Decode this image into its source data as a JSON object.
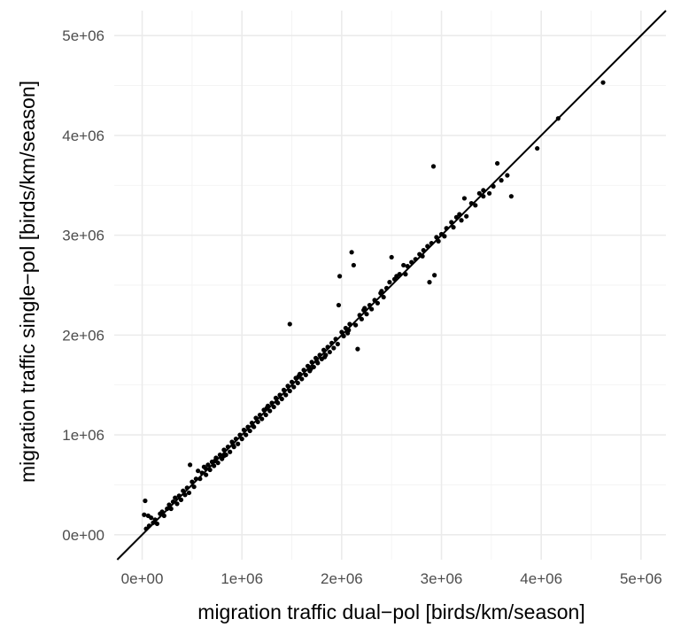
{
  "chart_data": {
    "type": "scatter",
    "xlabel": "migration traffic dual−pol [birds/km/season]",
    "ylabel": "migration traffic single−pol [birds/km/season]",
    "xlim": [
      -280000,
      5250000
    ],
    "ylim": [
      -250000,
      5250000
    ],
    "x_ticks": [
      0,
      1000000,
      2000000,
      3000000,
      4000000,
      5000000
    ],
    "x_tick_labels": [
      "0e+00",
      "1e+06",
      "2e+06",
      "3e+06",
      "4e+06",
      "5e+06"
    ],
    "y_ticks": [
      0,
      1000000,
      2000000,
      3000000,
      4000000,
      5000000
    ],
    "y_tick_labels": [
      "0e+00",
      "1e+06",
      "2e+06",
      "3e+06",
      "4e+06",
      "5e+06"
    ],
    "grid": true,
    "legend": "none",
    "reference_line": {
      "slope": 1,
      "intercept": 0,
      "color": "#000000"
    },
    "point_color": "#000000",
    "points": [
      [
        30000,
        340000
      ],
      [
        20000,
        200000
      ],
      [
        60000,
        190000
      ],
      [
        90000,
        170000
      ],
      [
        40000,
        60000
      ],
      [
        70000,
        90000
      ],
      [
        110000,
        120000
      ],
      [
        130000,
        150000
      ],
      [
        150000,
        110000
      ],
      [
        180000,
        210000
      ],
      [
        200000,
        230000
      ],
      [
        220000,
        190000
      ],
      [
        250000,
        260000
      ],
      [
        270000,
        300000
      ],
      [
        290000,
        260000
      ],
      [
        310000,
        330000
      ],
      [
        330000,
        370000
      ],
      [
        350000,
        310000
      ],
      [
        370000,
        390000
      ],
      [
        390000,
        350000
      ],
      [
        410000,
        440000
      ],
      [
        430000,
        400000
      ],
      [
        450000,
        470000
      ],
      [
        470000,
        420000
      ],
      [
        500000,
        530000
      ],
      [
        520000,
        480000
      ],
      [
        540000,
        560000
      ],
      [
        480000,
        700000
      ],
      [
        560000,
        640000
      ],
      [
        580000,
        560000
      ],
      [
        600000,
        620000
      ],
      [
        620000,
        680000
      ],
      [
        640000,
        600000
      ],
      [
        660000,
        700000
      ],
      [
        680000,
        650000
      ],
      [
        700000,
        730000
      ],
      [
        720000,
        690000
      ],
      [
        740000,
        770000
      ],
      [
        760000,
        720000
      ],
      [
        780000,
        800000
      ],
      [
        800000,
        760000
      ],
      [
        820000,
        850000
      ],
      [
        840000,
        800000
      ],
      [
        860000,
        880000
      ],
      [
        880000,
        830000
      ],
      [
        900000,
        930000
      ],
      [
        920000,
        880000
      ],
      [
        940000,
        960000
      ],
      [
        960000,
        910000
      ],
      [
        980000,
        1000000
      ],
      [
        1000000,
        960000
      ],
      [
        1020000,
        1050000
      ],
      [
        1040000,
        1000000
      ],
      [
        1060000,
        1080000
      ],
      [
        1080000,
        1040000
      ],
      [
        1100000,
        1120000
      ],
      [
        1120000,
        1080000
      ],
      [
        1140000,
        1170000
      ],
      [
        1160000,
        1130000
      ],
      [
        1180000,
        1200000
      ],
      [
        1200000,
        1160000
      ],
      [
        1220000,
        1250000
      ],
      [
        1240000,
        1200000
      ],
      [
        1260000,
        1290000
      ],
      [
        1280000,
        1240000
      ],
      [
        1300000,
        1320000
      ],
      [
        1320000,
        1280000
      ],
      [
        1340000,
        1370000
      ],
      [
        1360000,
        1320000
      ],
      [
        1380000,
        1400000
      ],
      [
        1400000,
        1360000
      ],
      [
        1420000,
        1450000
      ],
      [
        1440000,
        1400000
      ],
      [
        1460000,
        1490000
      ],
      [
        1480000,
        1440000
      ],
      [
        1480000,
        2110000
      ],
      [
        1500000,
        1530000
      ],
      [
        1520000,
        1480000
      ],
      [
        1540000,
        1570000
      ],
      [
        1560000,
        1520000
      ],
      [
        1580000,
        1610000
      ],
      [
        1600000,
        1560000
      ],
      [
        1620000,
        1650000
      ],
      [
        1640000,
        1600000
      ],
      [
        1660000,
        1690000
      ],
      [
        1680000,
        1640000
      ],
      [
        1700000,
        1730000
      ],
      [
        1720000,
        1680000
      ],
      [
        1740000,
        1770000
      ],
      [
        1760000,
        1720000
      ],
      [
        1780000,
        1800000
      ],
      [
        1800000,
        1760000
      ],
      [
        1820000,
        1850000
      ],
      [
        1840000,
        1800000
      ],
      [
        1860000,
        1880000
      ],
      [
        1880000,
        1830000
      ],
      [
        1900000,
        1920000
      ],
      [
        1920000,
        1870000
      ],
      [
        1940000,
        1960000
      ],
      [
        1960000,
        1910000
      ],
      [
        1970000,
        2300000
      ],
      [
        1980000,
        2590000
      ],
      [
        2000000,
        2030000
      ],
      [
        2020000,
        1990000
      ],
      [
        2040000,
        2070000
      ],
      [
        2060000,
        2020000
      ],
      [
        2080000,
        2110000
      ],
      [
        2100000,
        2830000
      ],
      [
        2120000,
        2700000
      ],
      [
        2140000,
        2100000
      ],
      [
        2160000,
        1860000
      ],
      [
        2180000,
        2200000
      ],
      [
        2200000,
        2160000
      ],
      [
        2220000,
        2250000
      ],
      [
        2250000,
        2210000
      ],
      [
        2280000,
        2300000
      ],
      [
        2300000,
        2260000
      ],
      [
        2330000,
        2350000
      ],
      [
        2360000,
        2320000
      ],
      [
        2390000,
        2420000
      ],
      [
        2420000,
        2380000
      ],
      [
        2450000,
        2470000
      ],
      [
        2480000,
        2530000
      ],
      [
        2500000,
        2780000
      ],
      [
        2530000,
        2560000
      ],
      [
        2580000,
        2610000
      ],
      [
        2620000,
        2700000
      ],
      [
        2660000,
        2690000
      ],
      [
        2700000,
        2730000
      ],
      [
        2740000,
        2760000
      ],
      [
        2780000,
        2810000
      ],
      [
        2820000,
        2850000
      ],
      [
        2860000,
        2890000
      ],
      [
        2880000,
        2530000
      ],
      [
        2900000,
        2920000
      ],
      [
        2920000,
        3690000
      ],
      [
        2930000,
        2600000
      ],
      [
        2950000,
        2980000
      ],
      [
        3000000,
        3010000
      ],
      [
        3050000,
        3070000
      ],
      [
        3100000,
        3130000
      ],
      [
        3150000,
        3180000
      ],
      [
        3200000,
        3150000
      ],
      [
        3230000,
        3370000
      ],
      [
        3300000,
        3320000
      ],
      [
        3380000,
        3420000
      ],
      [
        3420000,
        3450000
      ],
      [
        3480000,
        3420000
      ],
      [
        3520000,
        3490000
      ],
      [
        3560000,
        3720000
      ],
      [
        3600000,
        3550000
      ],
      [
        3660000,
        3600000
      ],
      [
        3700000,
        3390000
      ],
      [
        3960000,
        3870000
      ],
      [
        4170000,
        4170000
      ],
      [
        4620000,
        4530000
      ],
      [
        820000,
        790000
      ],
      [
        640000,
        660000
      ],
      [
        730000,
        740000
      ],
      [
        910000,
        900000
      ],
      [
        1110000,
        1090000
      ],
      [
        1250000,
        1270000
      ],
      [
        1350000,
        1330000
      ],
      [
        1570000,
        1590000
      ],
      [
        1690000,
        1660000
      ],
      [
        1750000,
        1740000
      ],
      [
        1830000,
        1780000
      ],
      [
        2070000,
        2050000
      ],
      [
        2230000,
        2270000
      ],
      [
        2400000,
        2440000
      ],
      [
        2550000,
        2590000
      ],
      [
        2640000,
        2610000
      ],
      [
        2810000,
        2790000
      ],
      [
        2970000,
        2940000
      ],
      [
        3030000,
        2990000
      ],
      [
        3120000,
        3080000
      ],
      [
        3180000,
        3210000
      ],
      [
        3250000,
        3190000
      ],
      [
        3340000,
        3300000
      ],
      [
        3420000,
        3390000
      ]
    ]
  }
}
